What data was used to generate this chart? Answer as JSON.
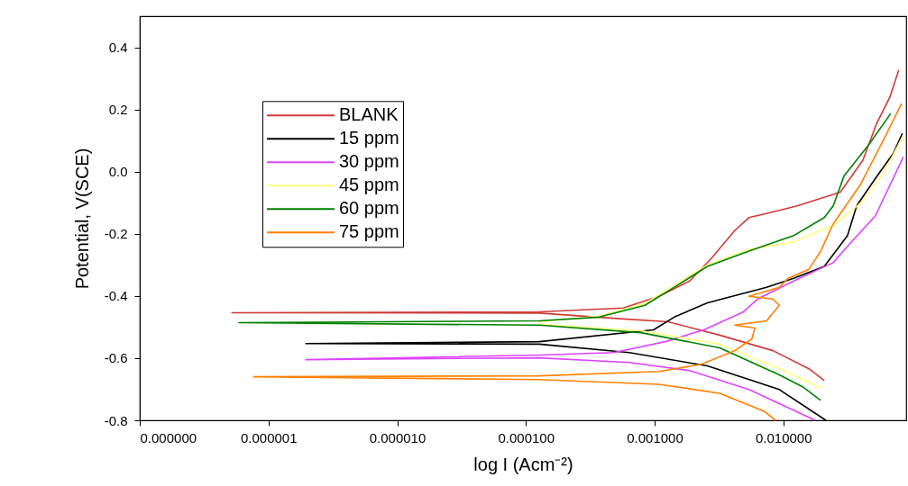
{
  "chart_data": {
    "type": "line",
    "xlabel": "log I (Acm⁻²)",
    "ylabel": "Potential, V(SCE)",
    "log": "x",
    "grid": false,
    "legend": "top left",
    "marker": "none",
    "line_style": "solid",
    "xlim": [
      1e-07,
      0.09
    ],
    "xticks": [
      {
        "value": 1e-07,
        "label": "0.000000"
      },
      {
        "value": 1e-06,
        "label": "0.000001"
      },
      {
        "value": 1e-05,
        "label": "0.000010"
      },
      {
        "value": 0.0001,
        "label": "0.000100"
      },
      {
        "value": 0.001,
        "label": "0.001000"
      },
      {
        "value": 0.01,
        "label": "0.010000"
      }
    ],
    "ylim": [
      -0.8,
      0.5
    ],
    "yticks": [
      -0.8,
      -0.6,
      -0.4,
      -0.2,
      {
        "value": 0,
        "label": "0.0"
      },
      0.2,
      0.4
    ],
    "series": [
      {
        "name": "BLANK",
        "color": "#d03a3a",
        "x": [
          0.0208,
          0.0158,
          0.0083,
          0.0032,
          0.00127,
          0.00057,
          0.000127,
          5.2e-07,
          0.000127,
          0.00057,
          0.00108,
          0.00187,
          0.0028,
          0.0042,
          0.0054,
          0.0083,
          0.0128,
          0.0277,
          0.0414,
          0.0527,
          0.0671,
          0.0788
        ],
        "values": [
          -0.672,
          -0.634,
          -0.576,
          -0.526,
          -0.483,
          -0.474,
          -0.455,
          -0.454,
          -0.451,
          -0.439,
          -0.401,
          -0.352,
          -0.276,
          -0.189,
          -0.148,
          -0.13,
          -0.11,
          -0.066,
          0.036,
          0.152,
          0.239,
          0.327
        ]
      },
      {
        "name": "15 ppm",
        "color": "#000000",
        "x": [
          0.0214,
          0.0093,
          0.00257,
          0.000635,
          0.000127,
          1.95e-06,
          0.000127,
          0.00098,
          0.00142,
          0.00257,
          0.0074,
          0.012,
          0.0208,
          0.0315,
          0.0371,
          0.0519,
          0.0716,
          0.084
        ],
        "values": [
          -0.8,
          -0.701,
          -0.625,
          -0.582,
          -0.555,
          -0.553,
          -0.547,
          -0.509,
          -0.468,
          -0.422,
          -0.372,
          -0.343,
          -0.305,
          -0.206,
          -0.11,
          -0.022,
          0.059,
          0.123
        ]
      },
      {
        "name": "30 ppm",
        "color": "#dd44ff",
        "x": [
          0.0177,
          0.0054,
          0.00187,
          0.000635,
          0.000127,
          1.95e-06,
          0.000127,
          0.00048,
          0.00121,
          0.00241,
          0.0049,
          0.0063,
          0.012,
          0.0244,
          0.0337,
          0.0519,
          0.0855
        ],
        "values": [
          -0.8,
          -0.701,
          -0.64,
          -0.614,
          -0.599,
          -0.605,
          -0.59,
          -0.582,
          -0.547,
          -0.509,
          -0.451,
          -0.41,
          -0.352,
          -0.293,
          -0.227,
          -0.142,
          0.047
        ]
      },
      {
        "name": "45 ppm",
        "color": "#ffff80",
        "x": [
          0.0201,
          0.0093,
          0.0032,
          0.00078,
          0.000127,
          0.000127,
          0.00037,
          0.00084,
          0.00142,
          0.00257,
          0.0054,
          0.012,
          0.0256,
          0.0414,
          0.062,
          0.0855
        ],
        "values": [
          -0.698,
          -0.634,
          -0.555,
          -0.512,
          -0.491,
          -0.483,
          -0.465,
          -0.424,
          -0.366,
          -0.3,
          -0.25,
          -0.227,
          -0.168,
          -0.095,
          0.006,
          0.117
        ]
      },
      {
        "name": "60 ppm",
        "color": "#008000",
        "x": [
          0.0195,
          0.0141,
          0.0093,
          0.0032,
          0.00078,
          0.000127,
          5.9e-07,
          0.000127,
          0.00037,
          0.00084,
          0.00142,
          0.00257,
          0.0054,
          0.012,
          0.0208,
          0.0244,
          0.0296,
          0.0464,
          0.0682
        ],
        "values": [
          -0.736,
          -0.692,
          -0.654,
          -0.567,
          -0.518,
          -0.494,
          -0.486,
          -0.48,
          -0.468,
          -0.43,
          -0.372,
          -0.305,
          -0.256,
          -0.206,
          -0.148,
          -0.11,
          -0.014,
          0.088,
          0.187
        ]
      },
      {
        "name": "75 ppm",
        "color": "#ff8000",
        "x": [
          0.0087,
          0.0071,
          0.0032,
          0.00108,
          0.000127,
          7.7e-07,
          0.000127,
          0.00108,
          0.0023,
          0.0042,
          0.0057,
          0.006,
          0.0042,
          0.0074,
          0.0093,
          0.0083,
          0.0054,
          0.0093,
          0.0109,
          0.0158,
          0.0195,
          0.0244,
          0.0395,
          0.061,
          0.0828
        ],
        "values": [
          -0.8,
          -0.771,
          -0.713,
          -0.684,
          -0.669,
          -0.66,
          -0.657,
          -0.643,
          -0.62,
          -0.576,
          -0.538,
          -0.503,
          -0.494,
          -0.48,
          -0.43,
          -0.41,
          -0.401,
          -0.372,
          -0.343,
          -0.314,
          -0.256,
          -0.168,
          -0.043,
          0.108,
          0.219
        ]
      }
    ]
  }
}
